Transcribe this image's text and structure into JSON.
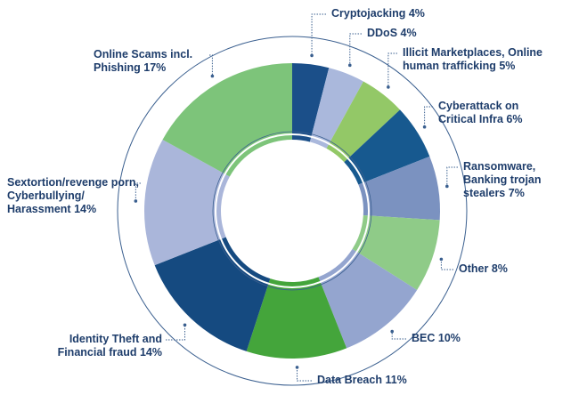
{
  "chart_data": {
    "type": "donut",
    "categories": [
      "Cryptojacking",
      "DDoS",
      "Illicit Marketplaces, Online human trafficking",
      "Cyberattack on Critical Infra",
      "Ransomware, Banking trojan stealers",
      "Other",
      "BEC",
      "Data Breach",
      "Identity Theft and Financial fraud",
      "Sextortion/revenge porn, Cyberbullying/ Harassment",
      "Online Scams incl. Phishing"
    ],
    "values": [
      4,
      4,
      5,
      6,
      7,
      8,
      10,
      11,
      14,
      14,
      17
    ],
    "value_labels": [
      "4%",
      "4%",
      "5%",
      "6%",
      "7%",
      "8%",
      "10%",
      "11%",
      "14%",
      "14%",
      "17%"
    ],
    "colors": [
      "#1b4f89",
      "#aab8dc",
      "#93c867",
      "#17598f",
      "#7b92c0",
      "#8fcb88",
      "#94a5cf",
      "#44a53b",
      "#154a80",
      "#aab6da",
      "#7dc47a"
    ]
  }
}
